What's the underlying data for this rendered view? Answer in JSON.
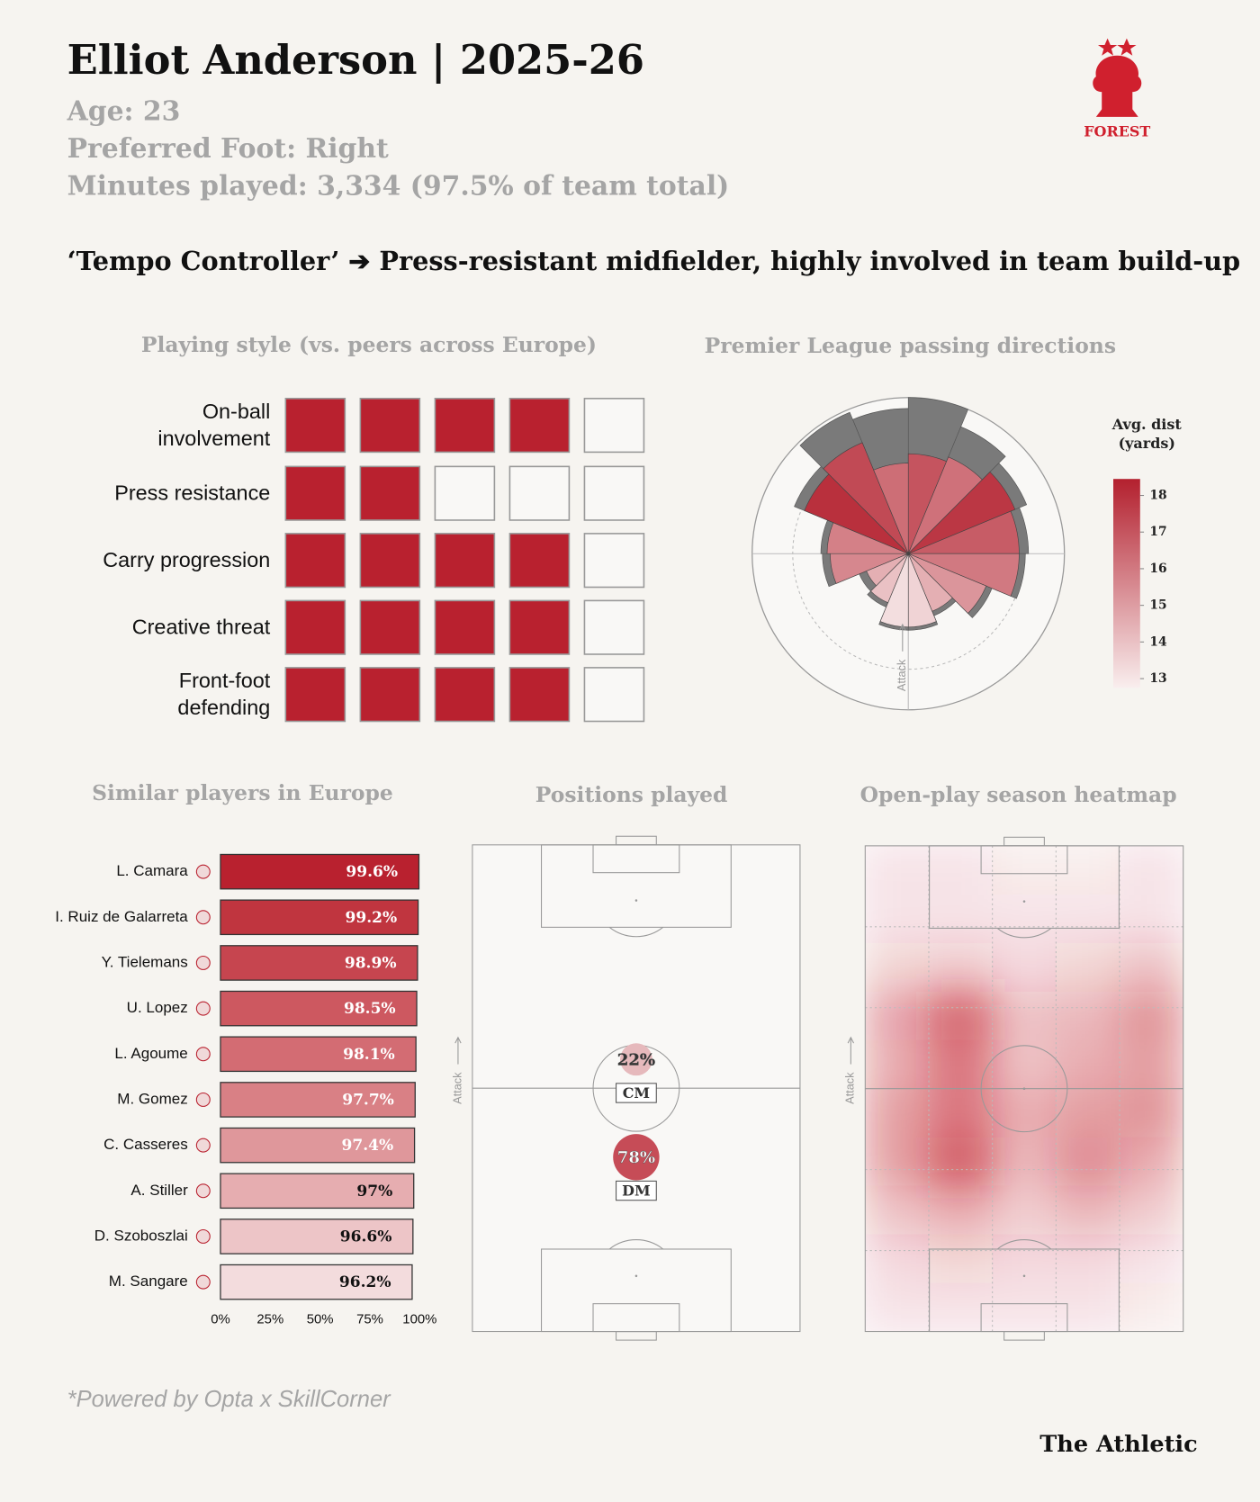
{
  "header": {
    "title": "Elliot Anderson | 2025-26",
    "age": "Age: 23",
    "foot": "Preferred Foot: Right",
    "minutes": "Minutes played: 3,334 (97.5% of team total)",
    "subtitle": "‘Tempo Controller’ ➔ Press-resistant midfielder, highly involved in team build-up",
    "logo_text": "FOREST"
  },
  "footer": {
    "source": "*Powered by Opta x SkillCorner",
    "brand": "The Athletic"
  },
  "chart_data": [
    {
      "type": "rating",
      "title": "Playing style (vs. peers across Europe)",
      "categories": [
        "On-ball\ninvolvement",
        "Press resistance",
        "Carry progression",
        "Creative threat",
        "Front-foot\ndefending"
      ],
      "values": [
        4,
        2,
        4,
        4,
        4
      ],
      "max": 5,
      "color": "#b9212f"
    },
    {
      "type": "rose",
      "title": "Premier League passing directions",
      "values": [
        64,
        67,
        74,
        71,
        71,
        54,
        40,
        47,
        47,
        34,
        29,
        50,
        52,
        72,
        77,
        58
      ],
      "totals": [
        100,
        88,
        82,
        77,
        75,
        58,
        43,
        49,
        49,
        37,
        34,
        55,
        56,
        79,
        98,
        93
      ],
      "avg_dist": [
        17,
        16.2,
        17.8,
        16.8,
        16,
        15.2,
        14.5,
        13.5,
        13.2,
        14,
        14.5,
        15.6,
        15.8,
        18,
        17.3,
        16.3
      ],
      "rlim": [
        0,
        100
      ],
      "total_color": "#7a7a7a",
      "legend_title": "Avg. dist (yards)",
      "clim": [
        12.75,
        18.45
      ],
      "cticks": [
        13,
        14,
        15,
        16,
        17,
        18
      ],
      "colors": [
        "#f9eeee",
        "#b3202e"
      ],
      "annotation": "Attack"
    },
    {
      "type": "hbar",
      "title": "Similar players in Europe",
      "categories": [
        "L. Camara",
        "I. Ruiz de Galarreta",
        "Y. Tielemans",
        "U. Lopez",
        "L. Agoume",
        "M. Gomez",
        "C. Casseres",
        "A. Stiller",
        "D. Szoboszlai",
        "M. Sangare"
      ],
      "values": [
        99.6,
        99.2,
        98.9,
        98.5,
        98.1,
        97.7,
        97.4,
        97,
        96.6,
        96.2
      ],
      "value_labels": [
        "99.6%",
        "99.2%",
        "98.9%",
        "98.5%",
        "98.1%",
        "97.7%",
        "97.4%",
        "97%",
        "96.6%",
        "96.2%"
      ],
      "colors": [
        "#b9212f",
        "#c0353f",
        "#c6454f",
        "#cd5860",
        "#d36c73",
        "#d98085",
        "#df979b",
        "#e6adb0",
        "#edc5c7",
        "#f3dcdd"
      ],
      "xlim": [
        0,
        100
      ],
      "xticks": [
        {
          "value": 0,
          "label": "0%"
        },
        {
          "value": 25,
          "label": "25%"
        },
        {
          "value": 50,
          "label": "50%"
        },
        {
          "value": 75,
          "label": "75%"
        },
        {
          "value": 100,
          "label": "100%"
        }
      ]
    },
    {
      "type": "positions",
      "title": "Positions played",
      "categories": [
        "CM",
        "DM"
      ],
      "values": [
        22,
        78
      ],
      "value_labels": [
        "22%",
        "78%"
      ],
      "colors": [
        "#f3e4e4",
        "#b9212f"
      ],
      "annotation": "Attack"
    },
    {
      "type": "heatmap",
      "title": "Open-play season heatmap",
      "color": "#c4202f",
      "annotation": "Attack",
      "values": [
        [
          0.1,
          0.1,
          0.05,
          0.05,
          0.1
        ],
        [
          0.1,
          0.1,
          0.1,
          0.1,
          0.1
        ],
        [
          0.2,
          0.25,
          0.15,
          0.2,
          0.3
        ],
        [
          0.45,
          0.8,
          0.3,
          0.35,
          0.55
        ],
        [
          0.4,
          0.7,
          0.3,
          0.4,
          0.5
        ],
        [
          0.5,
          0.7,
          0.4,
          0.5,
          0.55
        ],
        [
          0.5,
          0.85,
          0.35,
          0.6,
          0.4
        ],
        [
          0.3,
          0.4,
          0.25,
          0.35,
          0.25
        ],
        [
          0.15,
          0.2,
          0.15,
          0.15,
          0.1
        ],
        [
          0.1,
          0.1,
          0.1,
          0.1,
          0.05
        ]
      ]
    }
  ]
}
